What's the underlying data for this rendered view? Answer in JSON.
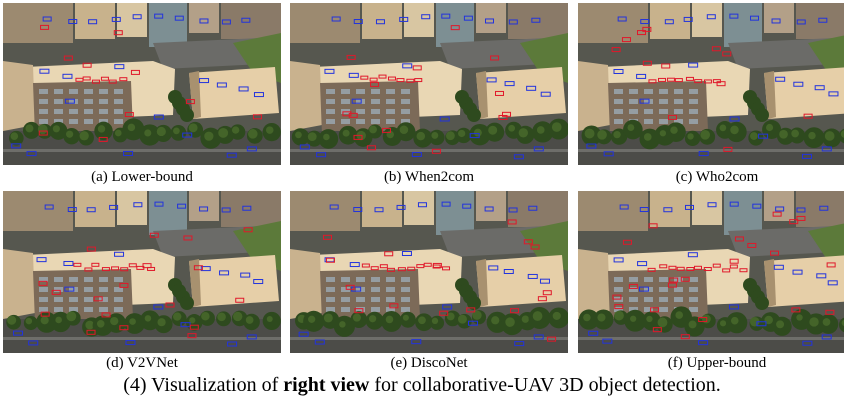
{
  "panels": [
    {
      "caption": "(a) Lower-bound"
    },
    {
      "caption": "(b) When2com"
    },
    {
      "caption": "(c) Who2com"
    },
    {
      "caption": "(d) V2VNet"
    },
    {
      "caption": "(e) DiscoNet"
    },
    {
      "caption": "(f) Upper-bound"
    }
  ],
  "figure_caption": {
    "prefix": "(4) Visualization of ",
    "bold": "right view",
    "suffix": " for collaborative-UAV 3D object detection."
  },
  "colors": {
    "ground_truth_box": "#2233dd",
    "prediction_box": "#e0182a",
    "building_light": "#e9d7b4",
    "building_shadow": "#7c6a58",
    "tree": "#2e4a1e",
    "road": "#6b6b68"
  }
}
